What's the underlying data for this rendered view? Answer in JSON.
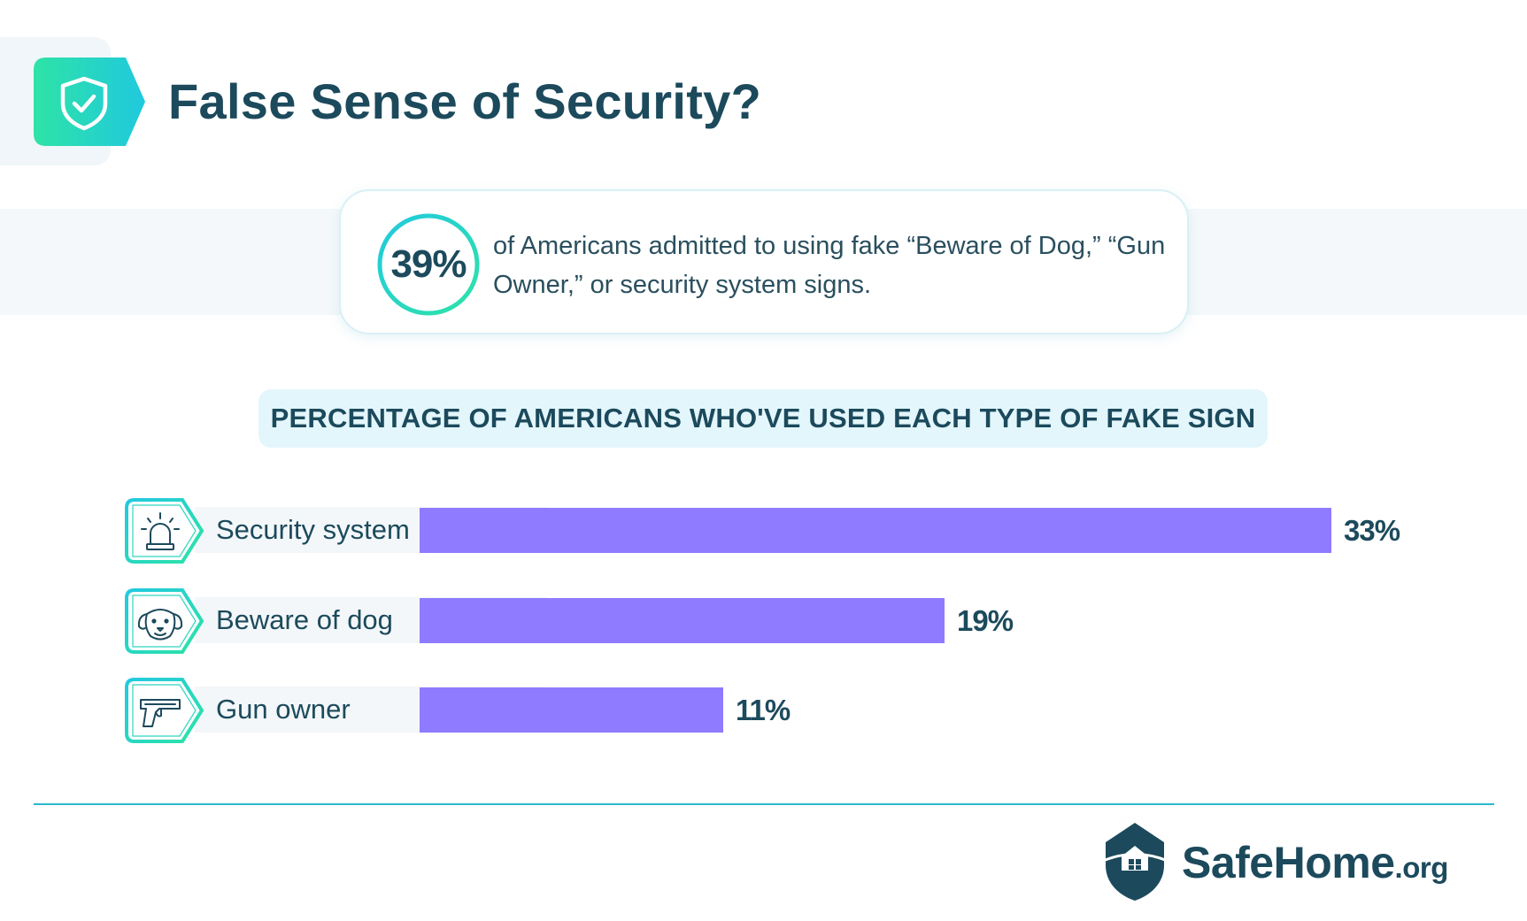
{
  "header": {
    "title": "False Sense of Security?",
    "icon": "shield-check-icon"
  },
  "stat": {
    "value": "39%",
    "text": "of Americans admitted to using fake “Beware of Dog,” “Gun Owner,” or security system signs."
  },
  "colors": {
    "bar": "#8e7bff",
    "accent": "#2ad6b8",
    "text": "#1c4a5c"
  },
  "chart_data": {
    "type": "bar",
    "orientation": "horizontal",
    "title": "PERCENTAGE OF AMERICANS WHO'VE USED EACH TYPE OF FAKE SIGN",
    "categories": [
      "Security system",
      "Beware of dog",
      "Gun owner"
    ],
    "values": [
      33,
      19,
      11
    ],
    "value_labels": [
      "33%",
      "19%",
      "11%"
    ],
    "icons": [
      "alarm-siren-icon",
      "dog-icon",
      "gun-icon"
    ],
    "xlim": [
      0,
      33
    ],
    "grid": false
  },
  "footer": {
    "brand": "SafeHome",
    "tld": ".org",
    "icon": "house-shield-icon"
  }
}
